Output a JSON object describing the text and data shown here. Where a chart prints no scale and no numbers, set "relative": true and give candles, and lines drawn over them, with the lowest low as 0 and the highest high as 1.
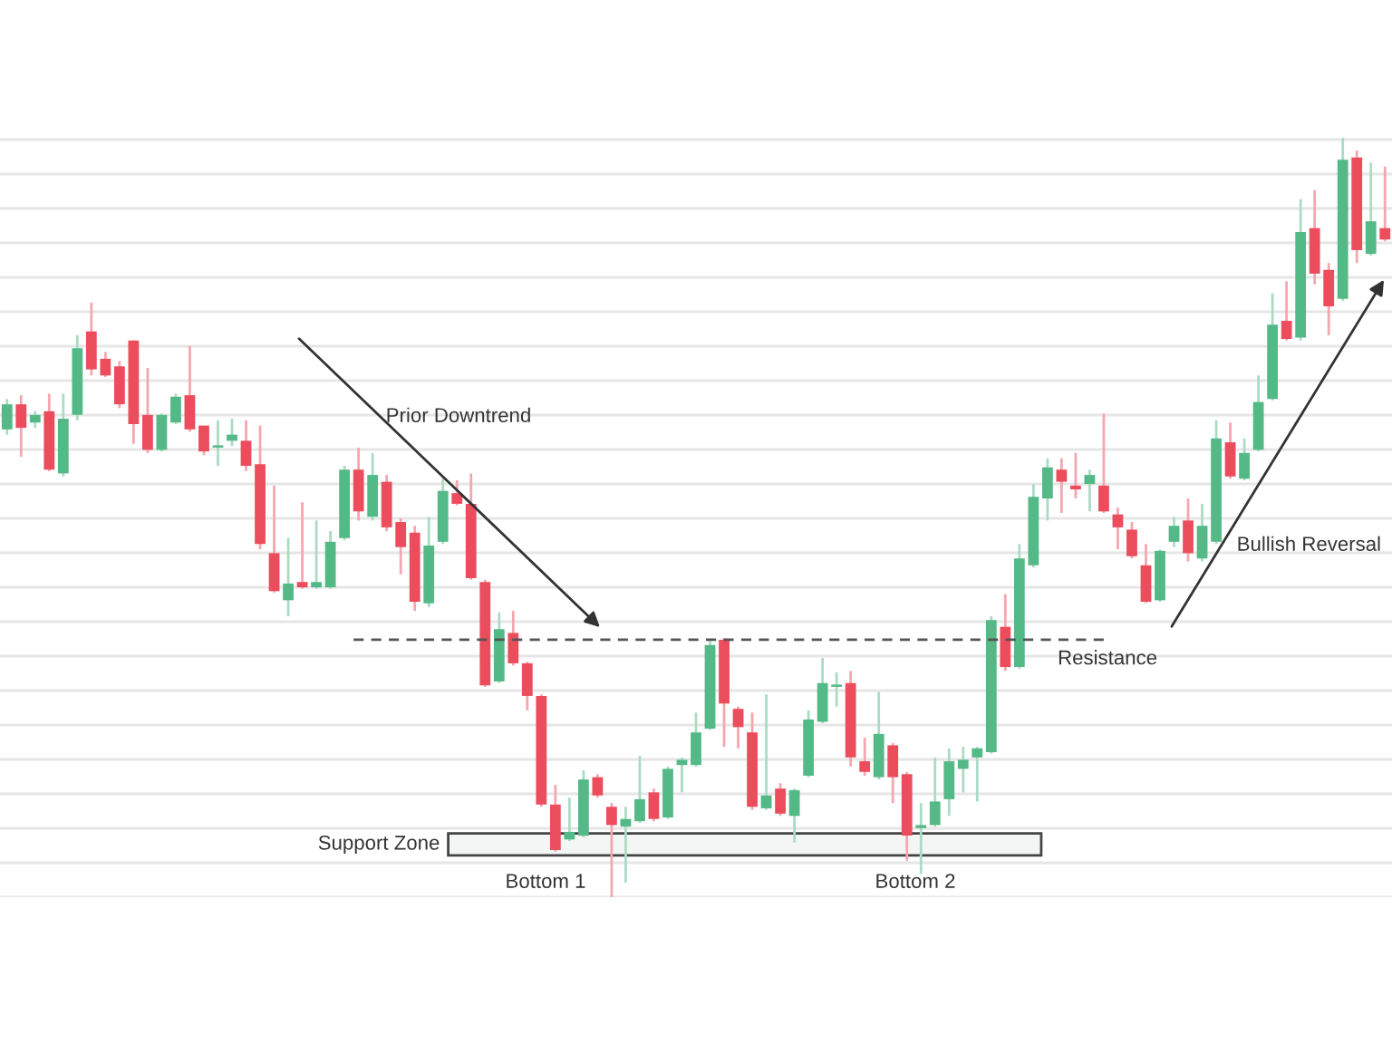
{
  "chart_data": {
    "type": "candlestick",
    "relative": true,
    "grid": "y",
    "categories": [
      null,
      null,
      null,
      null,
      null,
      null,
      null,
      null,
      null,
      null,
      null,
      null,
      null,
      null,
      null,
      null,
      null,
      null,
      null,
      null,
      null,
      null,
      null,
      null,
      null,
      null,
      null,
      null,
      null,
      null,
      null,
      null,
      null,
      null,
      null,
      null,
      null,
      null,
      null,
      null,
      null,
      null,
      null,
      null,
      null,
      null,
      null,
      null,
      null,
      null,
      null,
      null,
      null,
      null,
      null,
      null,
      null,
      null,
      null,
      null,
      null,
      null,
      null,
      null,
      null,
      null,
      null,
      null,
      null,
      null,
      null,
      null,
      null,
      null,
      null,
      null,
      null,
      null,
      null,
      null,
      null,
      null,
      null,
      null,
      null,
      null,
      null,
      null,
      null,
      null,
      null,
      null,
      null,
      null,
      null,
      null,
      null,
      null,
      null
    ],
    "ohlc": [
      [
        0.616,
        0.656,
        0.609,
        0.649
      ],
      [
        0.649,
        0.661,
        0.58,
        0.618
      ],
      [
        0.625,
        0.64,
        0.618,
        0.635
      ],
      [
        0.64,
        0.663,
        0.561,
        0.563
      ],
      [
        0.558,
        0.663,
        0.554,
        0.63
      ],
      [
        0.635,
        0.74,
        0.628,
        0.723
      ],
      [
        0.745,
        0.783,
        0.687,
        0.695
      ],
      [
        0.709,
        0.718,
        0.685,
        0.687
      ],
      [
        0.699,
        0.706,
        0.644,
        0.649
      ],
      [
        0.733,
        0.733,
        0.597,
        0.623
      ],
      [
        0.635,
        0.697,
        0.585,
        0.589
      ],
      [
        0.589,
        0.637,
        0.587,
        0.635
      ],
      [
        0.625,
        0.663,
        0.623,
        0.659
      ],
      [
        0.661,
        0.726,
        0.613,
        0.616
      ],
      [
        0.621,
        0.621,
        0.582,
        0.587
      ],
      [
        0.592,
        0.628,
        0.568,
        0.594
      ],
      [
        0.601,
        0.63,
        0.594,
        0.609
      ],
      [
        0.601,
        0.628,
        0.561,
        0.568
      ],
      [
        0.57,
        0.621,
        0.458,
        0.465
      ],
      [
        0.453,
        0.542,
        0.401,
        0.403
      ],
      [
        0.391,
        0.473,
        0.37,
        0.413
      ],
      [
        0.415,
        0.52,
        0.406,
        0.408
      ],
      [
        0.408,
        0.496,
        0.406,
        0.415
      ],
      [
        0.408,
        0.482,
        0.406,
        0.468
      ],
      [
        0.473,
        0.568,
        0.47,
        0.563
      ],
      [
        0.563,
        0.592,
        0.496,
        0.508
      ],
      [
        0.501,
        0.585,
        0.496,
        0.556
      ],
      [
        0.547,
        0.556,
        0.482,
        0.487
      ],
      [
        0.494,
        0.499,
        0.425,
        0.461
      ],
      [
        0.48,
        0.489,
        0.377,
        0.389
      ],
      [
        0.387,
        0.501,
        0.382,
        0.463
      ],
      [
        0.468,
        0.551,
        0.465,
        0.535
      ],
      [
        0.532,
        0.549,
        0.516,
        0.518
      ],
      [
        0.518,
        0.558,
        0.418,
        0.42
      ],
      [
        0.415,
        0.418,
        0.277,
        0.279
      ],
      [
        0.284,
        0.375,
        0.282,
        0.353
      ],
      [
        0.348,
        0.377,
        0.305,
        0.308
      ],
      [
        0.308,
        0.31,
        0.246,
        0.265
      ],
      [
        0.265,
        0.267,
        0.119,
        0.122
      ],
      [
        0.122,
        0.148,
        0.06,
        0.062
      ],
      [
        0.076,
        0.131,
        0.074,
        0.086
      ],
      [
        0.081,
        0.167,
        0.079,
        0.155
      ],
      [
        0.158,
        0.162,
        0.131,
        0.134
      ],
      [
        0.119,
        0.124,
        0,
        0.095
      ],
      [
        0.093,
        0.119,
        0.019,
        0.103
      ],
      [
        0.1,
        0.186,
        0.098,
        0.129
      ],
      [
        0.138,
        0.143,
        0.1,
        0.103
      ],
      [
        0.105,
        0.172,
        0.103,
        0.169
      ],
      [
        0.174,
        0.184,
        0.138,
        0.181
      ],
      [
        0.174,
        0.243,
        0.172,
        0.217
      ],
      [
        0.222,
        0.339,
        0.22,
        0.332
      ],
      [
        0.339,
        0.341,
        0.198,
        0.255
      ],
      [
        0.248,
        0.251,
        0.196,
        0.224
      ],
      [
        0.217,
        0.243,
        0.115,
        0.119
      ],
      [
        0.117,
        0.267,
        0.115,
        0.134
      ],
      [
        0.143,
        0.15,
        0.107,
        0.11
      ],
      [
        0.107,
        0.143,
        0.072,
        0.141
      ],
      [
        0.16,
        0.246,
        0.158,
        0.234
      ],
      [
        0.231,
        0.315,
        0.229,
        0.282
      ],
      [
        0.277,
        0.296,
        0.251,
        0.279
      ],
      [
        0.282,
        0.298,
        0.172,
        0.184
      ],
      [
        0.179,
        0.21,
        0.16,
        0.165
      ],
      [
        0.158,
        0.27,
        0.155,
        0.215
      ],
      [
        0.2,
        0.203,
        0.124,
        0.158
      ],
      [
        0.162,
        0.165,
        0.048,
        0.081
      ],
      [
        0.091,
        0.124,
        0.031,
        0.095
      ],
      [
        0.095,
        0.184,
        0.093,
        0.126
      ],
      [
        0.129,
        0.196,
        0.107,
        0.179
      ],
      [
        0.169,
        0.198,
        0.138,
        0.181
      ],
      [
        0.184,
        0.198,
        0.126,
        0.196
      ],
      [
        0.191,
        0.37,
        0.189,
        0.365
      ],
      [
        0.356,
        0.399,
        0.298,
        0.303
      ],
      [
        0.303,
        0.465,
        0.301,
        0.446
      ],
      [
        0.437,
        0.544,
        0.434,
        0.527
      ],
      [
        0.525,
        0.578,
        0.496,
        0.566
      ],
      [
        0.563,
        0.578,
        0.506,
        0.547
      ],
      [
        0.542,
        0.585,
        0.525,
        0.537
      ],
      [
        0.544,
        0.563,
        0.508,
        0.556
      ],
      [
        0.542,
        0.637,
        0.506,
        0.508
      ],
      [
        0.504,
        0.513,
        0.458,
        0.487
      ],
      [
        0.484,
        0.494,
        0.446,
        0.449
      ],
      [
        0.437,
        0.465,
        0.387,
        0.389
      ],
      [
        0.391,
        0.458,
        0.389,
        0.456
      ],
      [
        0.468,
        0.501,
        0.461,
        0.489
      ],
      [
        0.496,
        0.525,
        0.442,
        0.453
      ],
      [
        0.446,
        0.518,
        0.442,
        0.489
      ],
      [
        0.468,
        0.628,
        0.465,
        0.604
      ],
      [
        0.599,
        0.625,
        0.551,
        0.554
      ],
      [
        0.551,
        0.604,
        0.549,
        0.585
      ],
      [
        0.589,
        0.687,
        0.587,
        0.652
      ],
      [
        0.656,
        0.795,
        0.654,
        0.754
      ],
      [
        0.759,
        0.811,
        0.733,
        0.735
      ],
      [
        0.737,
        0.919,
        0.733,
        0.876
      ],
      [
        0.881,
        0.931,
        0.807,
        0.821
      ],
      [
        0.826,
        0.835,
        0.74,
        0.778
      ],
      [
        0.788,
        1,
        0.785,
        0.971
      ],
      [
        0.974,
        0.983,
        0.835,
        0.852
      ],
      [
        0.847,
        0.967,
        0.845,
        0.89
      ],
      [
        0.881,
        0.962,
        0.864,
        0.866
      ]
    ],
    "ref_lines": [
      {
        "axis": "y",
        "value": 0.339,
        "label": "Resistance",
        "line_style": "dashed"
      }
    ],
    "bands": [
      {
        "axis": "y",
        "from": 0.055,
        "to": 0.084,
        "label": "Support Zone"
      }
    ],
    "annotations": [
      "Prior Downtrend",
      "Bottom 1",
      "Bottom 2",
      "Bullish Reversal"
    ]
  }
}
